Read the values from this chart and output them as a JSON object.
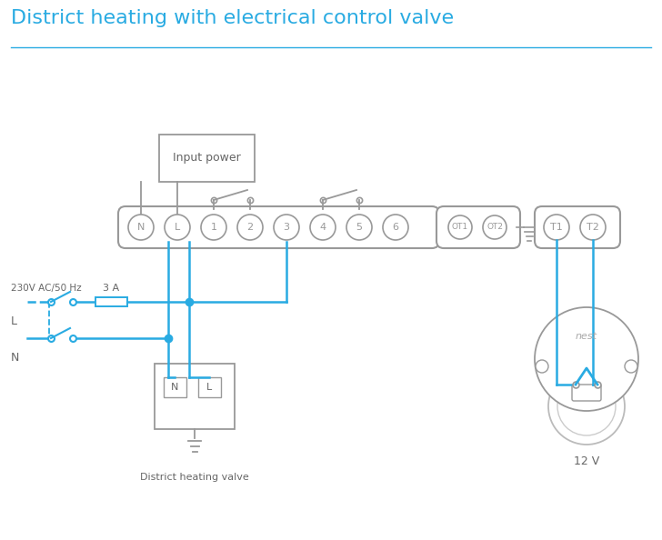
{
  "title": "District heating with electrical control valve",
  "title_color": "#29abe2",
  "title_fontsize": 16,
  "bg_color": "#ffffff",
  "wire_color": "#29abe2",
  "component_color": "#999999",
  "text_color": "#666666",
  "terminal_labels": [
    "N",
    "L",
    "1",
    "2",
    "3",
    "4",
    "5",
    "6"
  ],
  "ot_labels": [
    "OT1",
    "OT2"
  ],
  "t_labels": [
    "T1",
    "T2"
  ],
  "label_230v": "230V AC/50 Hz",
  "label_L": "L",
  "label_N": "N",
  "label_3A": "3 A",
  "label_district_valve": "District heating valve",
  "label_12v": "12 V",
  "label_input_power": "Input power",
  "label_nest": "nest"
}
